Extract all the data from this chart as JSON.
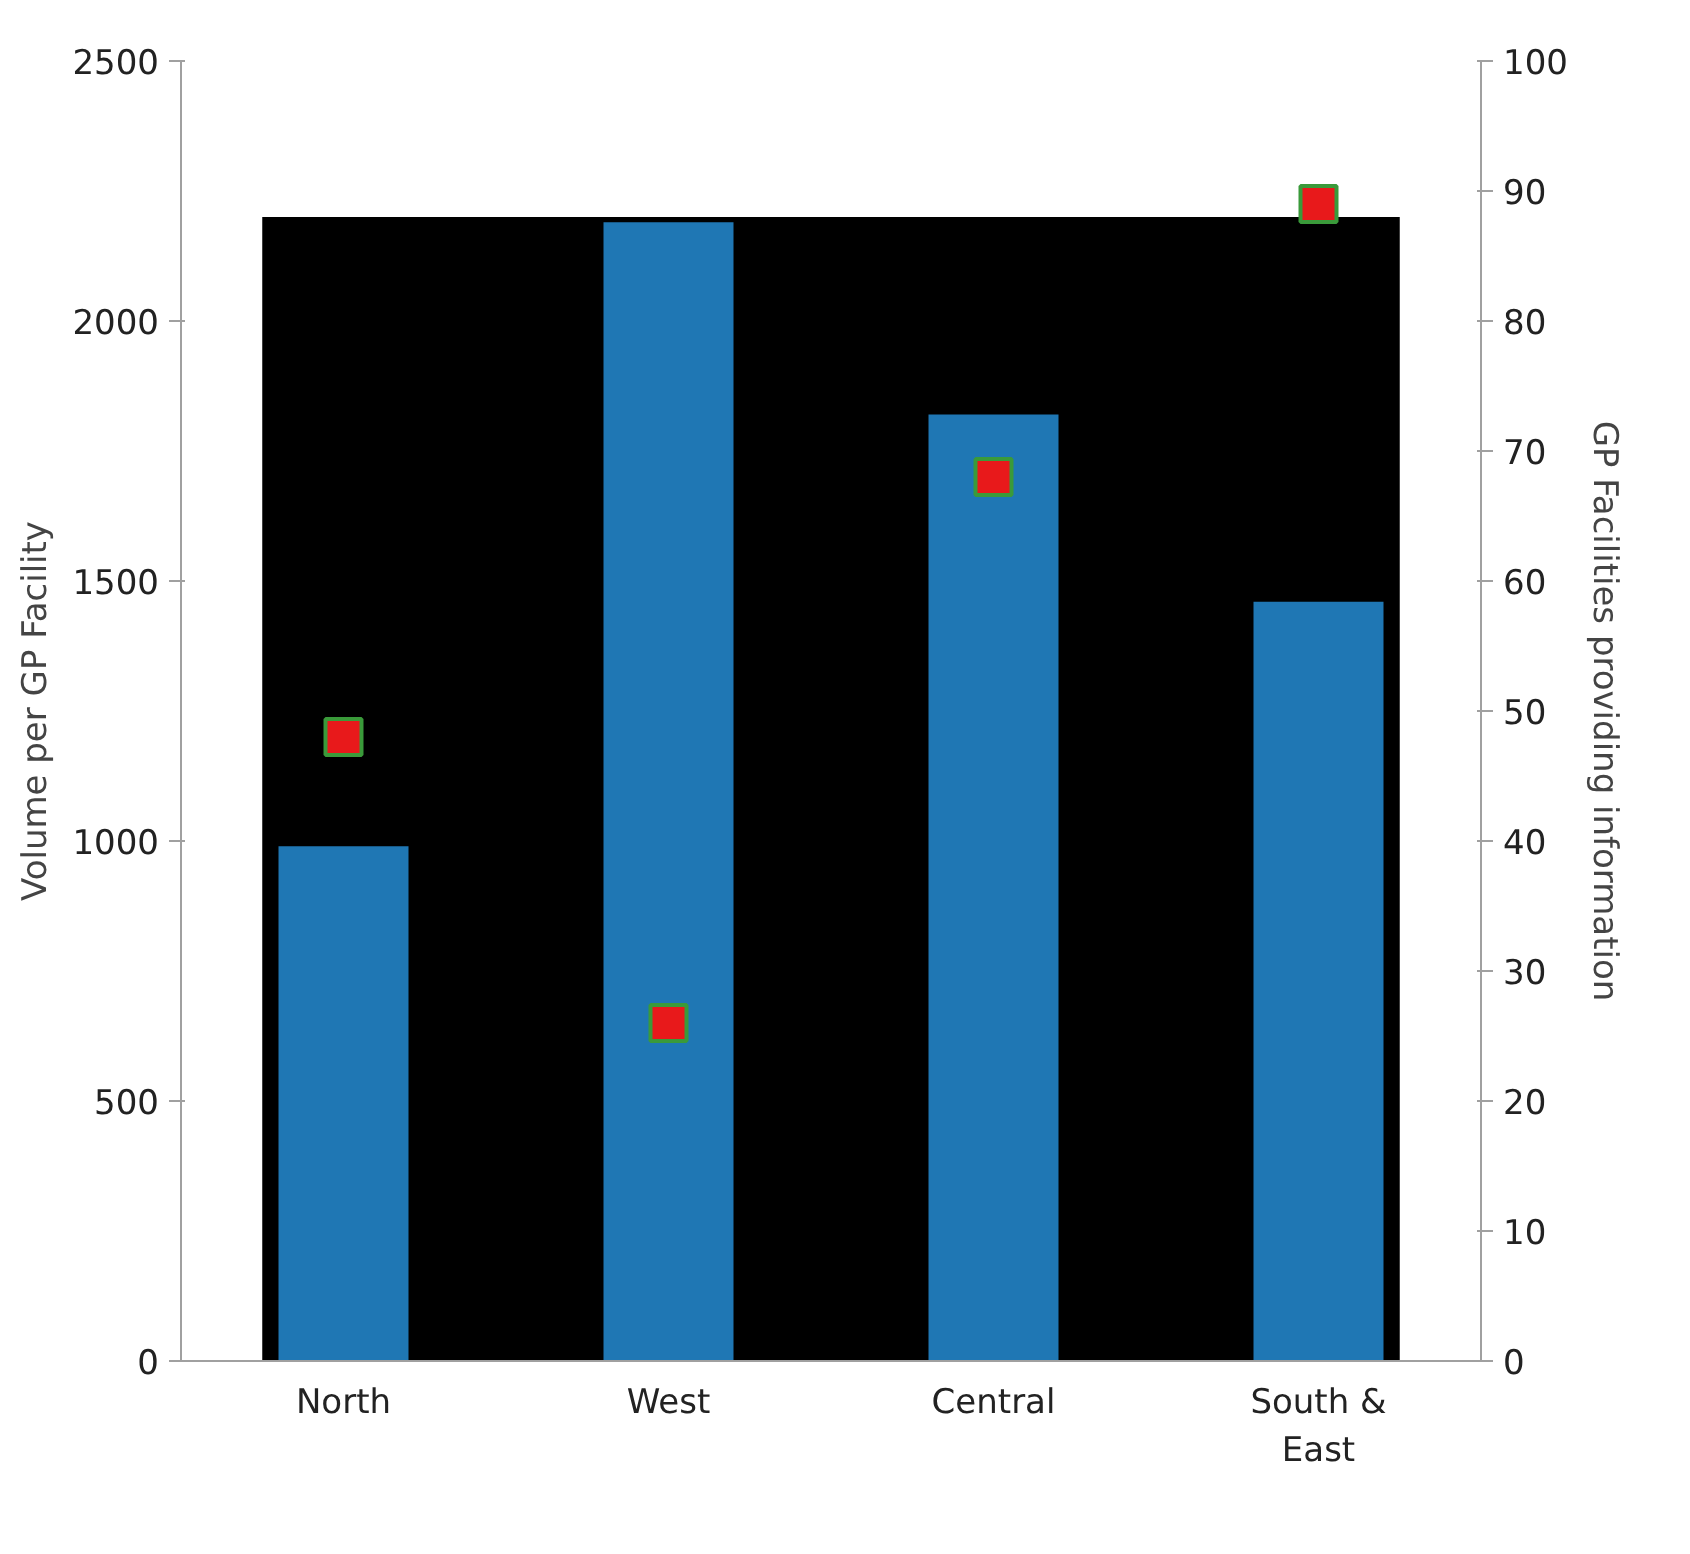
{
  "chart_data": {
    "type": "bar",
    "ylabel": "Volume per GP Facility",
    "y2label": "GP Facilities providing information",
    "categories": [
      "North",
      "West",
      "Central",
      "South & East"
    ],
    "series": [
      {
        "color": "#1f77b4",
        "values": [
          990,
          2190,
          1820,
          1460
        ]
      },
      {
        "type": "scatter",
        "axis": "y2",
        "color": "#e8191b",
        "values": [
          48,
          26,
          68,
          89
        ]
      }
    ],
    "marker": "square",
    "ylim": [
      0,
      2500
    ],
    "yticks": [
      0,
      500,
      1000,
      1500,
      2000,
      2500
    ],
    "y2lim": [
      0,
      100
    ],
    "y2ticks": [
      0,
      10,
      20,
      30,
      40,
      50,
      60,
      70,
      80,
      90,
      100
    ],
    "bands": [
      {
        "axis": "y",
        "from": 0,
        "to": 2200,
        "color": "#000000"
      }
    ]
  }
}
